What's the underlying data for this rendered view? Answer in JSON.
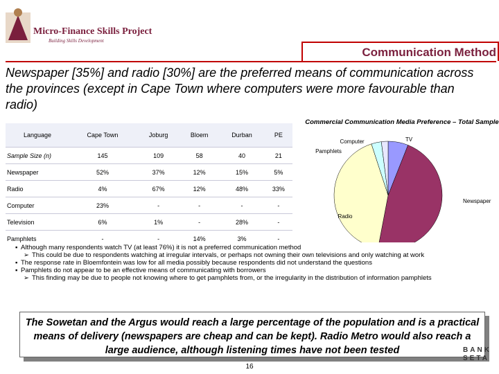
{
  "logo": {
    "name": "Micro-Finance Skills Project",
    "tagline": "Building Skills Development"
  },
  "header": {
    "title": "Communication Method"
  },
  "headline": "Newspaper [35%] and radio [30%] are the preferred means of communication across the provinces (except in Cape Town where computers were more favourable than radio)",
  "table": {
    "header": [
      "Language",
      "Cape Town",
      "Joburg",
      "Bloem",
      "Durban",
      "PE"
    ],
    "rows": [
      [
        "Sample Size (n)",
        "145",
        "109",
        "58",
        "40",
        "21"
      ],
      [
        "Newspaper",
        "52%",
        "37%",
        "12%",
        "15%",
        "5%"
      ],
      [
        "Radio",
        "4%",
        "67%",
        "12%",
        "48%",
        "33%"
      ],
      [
        "Computer",
        "23%",
        "-",
        "-",
        "-",
        "-"
      ],
      [
        "Television",
        "6%",
        "1%",
        "-",
        "28%",
        "-"
      ],
      [
        "Pamphlets",
        "-",
        "-",
        "14%",
        "3%",
        "-"
      ]
    ]
  },
  "chart_data": {
    "type": "pie",
    "title": "Commercial Communication Media Preference – Total Sample",
    "categories": [
      "TV",
      "Newspaper",
      "Radio",
      "Pamphlets",
      "Computer"
    ],
    "values": [
      6,
      47,
      42,
      3,
      2
    ],
    "colors": [
      "#9999ff",
      "#993366",
      "#ffffcc",
      "#ccffff",
      "#e8e8ff"
    ]
  },
  "bullets": [
    {
      "text": "Although many respondents watch TV (at least 76%) it is not a preferred communication method",
      "sub": [
        "This could be due to respondents watching at irregular intervals, or perhaps not owning their own televisions and only watching at work"
      ]
    },
    {
      "text": "The response rate in Bloemfontein was low for all media possibly because respondents did not understand the questions",
      "sub": []
    },
    {
      "text": "Pamphlets do not appear to be an effective means of communicating with borrowers",
      "sub": [
        "This finding may be due to people not knowing where to get pamphlets from, or the irregularity in the distribution of information pamphlets"
      ]
    }
  ],
  "callout": "The Sowetan and the Argus would reach a large percentage of the population and is a practical means of delivery (newspapers are cheap and can be kept). Radio Metro would also reach a large audience, although listening times have not been tested",
  "page_number": "16",
  "footer_logo": [
    "BANK",
    "SETA"
  ]
}
